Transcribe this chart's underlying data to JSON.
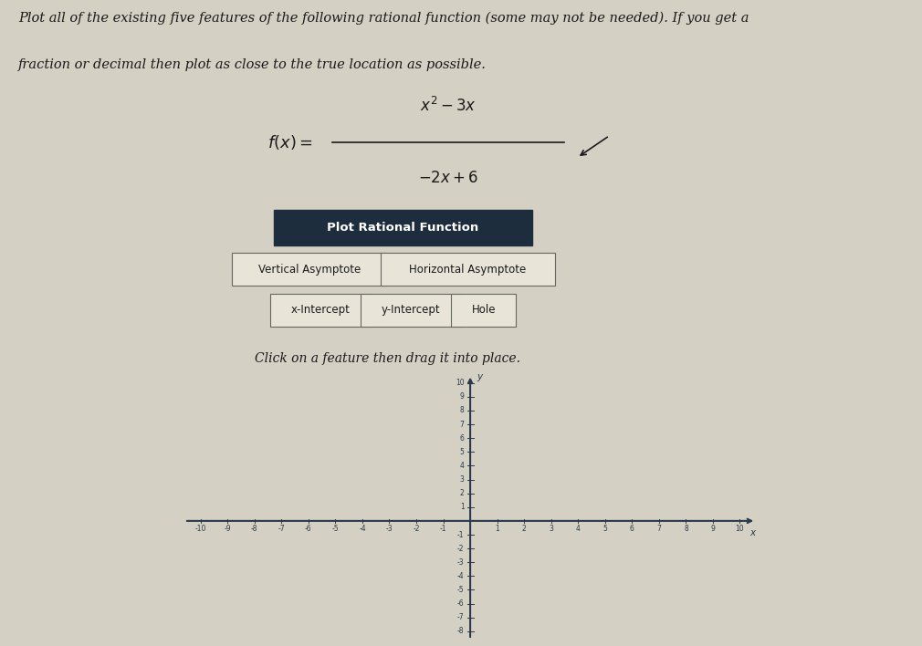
{
  "bg_color": "#d4d0c4",
  "grid_bg_color": "#deded8",
  "title_text1": "Plot all of the existing five features of the following rational function (some may not be needed). If you get a",
  "title_text2": "fraction or decimal then plot as close to the true location as possible.",
  "button_main": "Plot Rational Function",
  "button_main_bg": "#1e2d3d",
  "button_main_fg": "#ffffff",
  "button_bg": "#e8e4d8",
  "button_border": "#666660",
  "click_text": "Click on a feature then drag it into place.",
  "axis_color": "#2a3a4a",
  "tick_color": "#2a3a4a",
  "xlim": [
    -10,
    10
  ],
  "ylim": [
    -8,
    10
  ],
  "xticks": [
    -10,
    -9,
    -8,
    -7,
    -6,
    -5,
    -4,
    -3,
    -2,
    -1,
    1,
    2,
    3,
    4,
    5,
    6,
    7,
    8,
    9,
    10
  ],
  "yticks": [
    -8,
    -7,
    -6,
    -5,
    -4,
    -3,
    -2,
    -1,
    1,
    2,
    3,
    4,
    5,
    6,
    7,
    8,
    9,
    10
  ],
  "xlabel": "x",
  "ylabel": "y",
  "font_color": "#1a1a1a"
}
